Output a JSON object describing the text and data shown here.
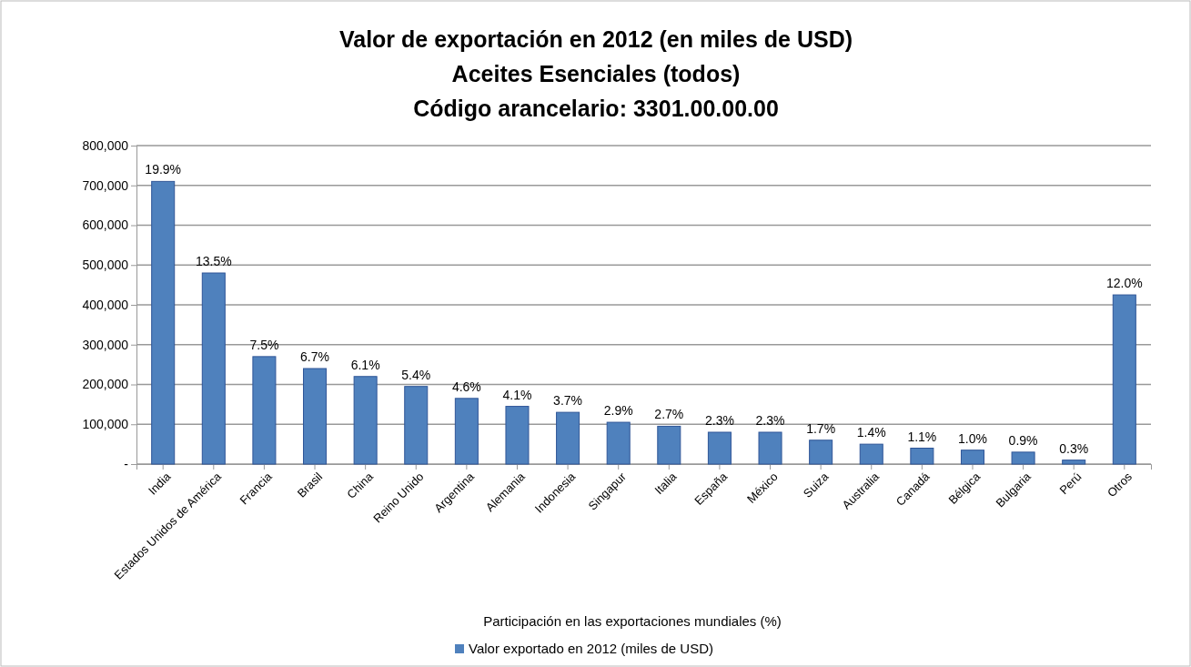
{
  "chart_data": {
    "type": "bar",
    "title": "Valor de exportación en 2012 (en miles de USD)",
    "subtitle": "Aceites Esenciales (todos)\nCódigo arancelario: 3301.00.00.00",
    "xlabel": "Participación en las exportaciones mundiales (%)",
    "categories": [
      "India",
      "Estados Unidos de América",
      "Francia",
      "Brasil",
      "China",
      "Reino Unido",
      "Argentina",
      "Alemania",
      "Indonesia",
      "Singapur",
      "Italia",
      "España",
      "México",
      "Suiza",
      "Australia",
      "Canadá",
      "Bélgica",
      "Bulgaria",
      "Perú",
      "Otros"
    ],
    "series": [
      {
        "name": "Valor exportado en 2012 (miles de USD)",
        "color": "#4f81bd",
        "values": [
          710000,
          480000,
          270000,
          240000,
          220000,
          195000,
          165000,
          145000,
          130000,
          105000,
          95000,
          80000,
          80000,
          60000,
          50000,
          40000,
          35000,
          30000,
          10000,
          425000
        ]
      }
    ],
    "annotations": [
      {
        "text": "19.9%",
        "x": "India",
        "y": 710000
      },
      {
        "text": "13.5%",
        "x": "Estados Unidos de América",
        "y": 480000
      },
      {
        "text": "7.5%",
        "x": "Francia",
        "y": 270000
      },
      {
        "text": "6.7%",
        "x": "Brasil",
        "y": 240000
      },
      {
        "text": "6.1%",
        "x": "China",
        "y": 220000
      },
      {
        "text": "5.4%",
        "x": "Reino Unido",
        "y": 195000
      },
      {
        "text": "4.6%",
        "x": "Argentina",
        "y": 165000
      },
      {
        "text": "4.1%",
        "x": "Alemania",
        "y": 145000
      },
      {
        "text": "3.7%",
        "x": "Indonesia",
        "y": 130000
      },
      {
        "text": "2.9%",
        "x": "Singapur",
        "y": 105000
      },
      {
        "text": "2.7%",
        "x": "Italia",
        "y": 95000
      },
      {
        "text": "2.3%",
        "x": "España",
        "y": 80000
      },
      {
        "text": "2.3%",
        "x": "México",
        "y": 80000
      },
      {
        "text": "1.7%",
        "x": "Suiza",
        "y": 60000
      },
      {
        "text": "1.4%",
        "x": "Australia",
        "y": 50000
      },
      {
        "text": "1.1%",
        "x": "Canadá",
        "y": 40000
      },
      {
        "text": "1.0%",
        "x": "Bélgica",
        "y": 35000
      },
      {
        "text": "0.9%",
        "x": "Bulgaria",
        "y": 30000
      },
      {
        "text": "0.3%",
        "x": "Perú",
        "y": 10000
      },
      {
        "text": "12.0%",
        "x": "Otros",
        "y": 425000
      }
    ],
    "ylim": [
      0,
      800000
    ],
    "yticks": [
      {
        "value": 0,
        "label": "-"
      },
      {
        "value": 100000,
        "label": "100,000"
      },
      {
        "value": 200000,
        "label": "200,000"
      },
      {
        "value": 300000,
        "label": "300,000"
      },
      {
        "value": 400000,
        "label": "400,000"
      },
      {
        "value": 500000,
        "label": "500,000"
      },
      {
        "value": 600000,
        "label": "600,000"
      },
      {
        "value": 700000,
        "label": "700,000"
      },
      {
        "value": 800000,
        "label": "800,000"
      }
    ],
    "grid": "y",
    "legend": "bottom"
  }
}
